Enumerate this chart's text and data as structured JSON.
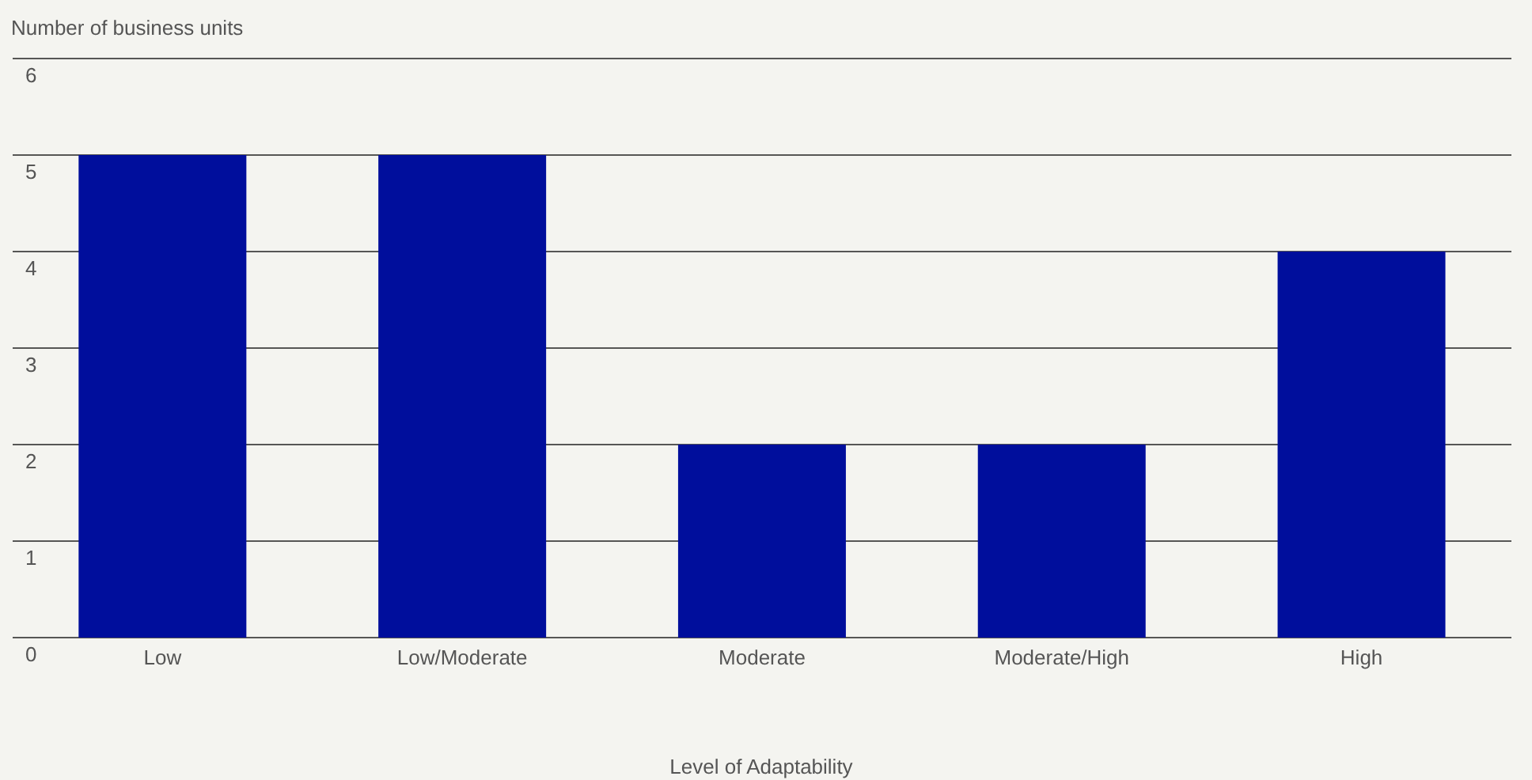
{
  "chart_data": {
    "type": "bar",
    "ylabel": "Number of business units",
    "xlabel": "Level of Adaptability",
    "categories": [
      "Low",
      "Low/Moderate",
      "Moderate",
      "Moderate/High",
      "High"
    ],
    "values": [
      5,
      5,
      2,
      2,
      4
    ],
    "color": "#000e9c",
    "ylim": [
      0,
      6
    ],
    "yticks": [
      0,
      1,
      2,
      3,
      4,
      5,
      6
    ],
    "grid": "y",
    "legend": false
  }
}
